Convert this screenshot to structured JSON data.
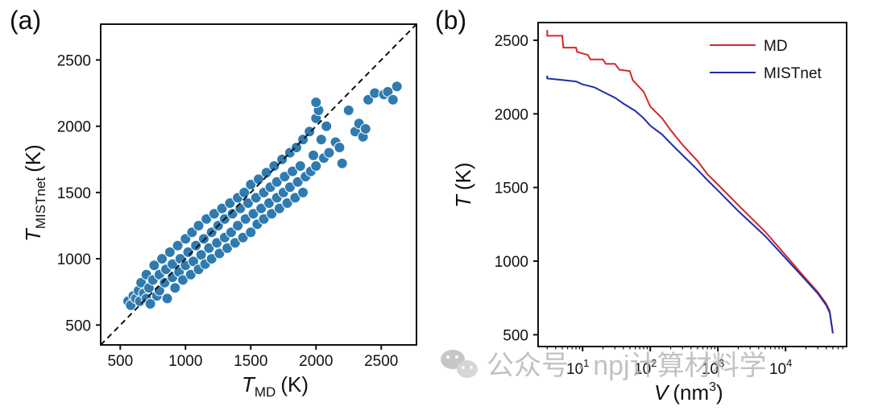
{
  "chart_data": [
    {
      "type": "scatter",
      "panel_label": "(a)",
      "xlabel": "T",
      "xlabel_sub": "MD",
      "xlabel_unit": "(K)",
      "ylabel": "T",
      "ylabel_sub": "MISTnet",
      "ylabel_unit": "(K)",
      "xlim": [
        350,
        2770
      ],
      "ylim": [
        350,
        2770
      ],
      "xticks": [
        500,
        1000,
        1500,
        2000,
        2500
      ],
      "yticks": [
        500,
        1000,
        1500,
        2000,
        2500
      ],
      "reference_line": "y = x (dashed)",
      "point_color": "#2f7bb0",
      "points": [
        [
          560,
          680
        ],
        [
          580,
          650
        ],
        [
          600,
          720
        ],
        [
          620,
          700
        ],
        [
          640,
          760
        ],
        [
          650,
          680
        ],
        [
          660,
          820
        ],
        [
          680,
          740
        ],
        [
          700,
          700
        ],
        [
          700,
          880
        ],
        [
          720,
          780
        ],
        [
          730,
          660
        ],
        [
          750,
          840
        ],
        [
          760,
          950
        ],
        [
          780,
          720
        ],
        [
          800,
          880
        ],
        [
          800,
          760
        ],
        [
          820,
          1000
        ],
        [
          840,
          820
        ],
        [
          850,
          920
        ],
        [
          860,
          700
        ],
        [
          880,
          1050
        ],
        [
          900,
          860
        ],
        [
          900,
          960
        ],
        [
          920,
          780
        ],
        [
          940,
          1100
        ],
        [
          950,
          900
        ],
        [
          960,
          1000
        ],
        [
          980,
          840
        ],
        [
          1000,
          1150
        ],
        [
          1000,
          950
        ],
        [
          1020,
          1050
        ],
        [
          1040,
          880
        ],
        [
          1050,
          1200
        ],
        [
          1060,
          980
        ],
        [
          1080,
          1100
        ],
        [
          1100,
          920
        ],
        [
          1100,
          1250
        ],
        [
          1120,
          1030
        ],
        [
          1140,
          1150
        ],
        [
          1150,
          960
        ],
        [
          1160,
          1300
        ],
        [
          1180,
          1080
        ],
        [
          1200,
          1200
        ],
        [
          1200,
          1000
        ],
        [
          1220,
          1340
        ],
        [
          1240,
          1120
        ],
        [
          1250,
          1250
        ],
        [
          1260,
          1040
        ],
        [
          1280,
          1380
        ],
        [
          1300,
          1160
        ],
        [
          1300,
          1300
        ],
        [
          1320,
          1080
        ],
        [
          1340,
          1420
        ],
        [
          1350,
          1200
        ],
        [
          1360,
          1340
        ],
        [
          1380,
          1120
        ],
        [
          1400,
          1460
        ],
        [
          1400,
          1250
        ],
        [
          1420,
          1380
        ],
        [
          1440,
          1160
        ],
        [
          1450,
          1500
        ],
        [
          1460,
          1300
        ],
        [
          1480,
          1420
        ],
        [
          1500,
          1200
        ],
        [
          1500,
          1560
        ],
        [
          1520,
          1340
        ],
        [
          1540,
          1460
        ],
        [
          1550,
          1260
        ],
        [
          1560,
          1600
        ],
        [
          1580,
          1380
        ],
        [
          1600,
          1500
        ],
        [
          1600,
          1300
        ],
        [
          1620,
          1650
        ],
        [
          1640,
          1420
        ],
        [
          1650,
          1540
        ],
        [
          1660,
          1340
        ],
        [
          1680,
          1700
        ],
        [
          1700,
          1460
        ],
        [
          1700,
          1580
        ],
        [
          1720,
          1380
        ],
        [
          1740,
          1750
        ],
        [
          1750,
          1500
        ],
        [
          1760,
          1620
        ],
        [
          1780,
          1420
        ],
        [
          1800,
          1800
        ],
        [
          1800,
          1540
        ],
        [
          1820,
          1660
        ],
        [
          1840,
          1460
        ],
        [
          1850,
          1840
        ],
        [
          1860,
          1580
        ],
        [
          1880,
          1700
        ],
        [
          1900,
          1500
        ],
        [
          1900,
          1900
        ],
        [
          1920,
          1620
        ],
        [
          1950,
          1960
        ],
        [
          1960,
          1660
        ],
        [
          1980,
          1780
        ],
        [
          2000,
          2060
        ],
        [
          2000,
          1700
        ],
        [
          2020,
          2120
        ],
        [
          2040,
          1900
        ],
        [
          2060,
          1760
        ],
        [
          2080,
          2000
        ],
        [
          2100,
          1800
        ],
        [
          2150,
          1880
        ],
        [
          2180,
          1840
        ],
        [
          2200,
          1720
        ],
        [
          2250,
          2120
        ],
        [
          2300,
          1960
        ],
        [
          2330,
          2020
        ],
        [
          2360,
          1920
        ],
        [
          2380,
          1980
        ],
        [
          2400,
          2200
        ],
        [
          2450,
          2250
        ],
        [
          2520,
          2240
        ],
        [
          2550,
          2260
        ],
        [
          2590,
          2200
        ],
        [
          2620,
          2300
        ],
        [
          2000,
          2180
        ]
      ]
    },
    {
      "type": "line",
      "panel_label": "(b)",
      "xlabel": "V",
      "xlabel_unit": "(nm",
      "xlabel_sup": "3",
      "xlabel_close": ")",
      "ylabel": "T",
      "ylabel_unit": "(K)",
      "xscale": "log",
      "xlim": [
        2.2,
        80000
      ],
      "ylim": [
        420,
        2620
      ],
      "xticks": [
        {
          "base": "10",
          "exp": "1",
          "value": 10
        },
        {
          "base": "10",
          "exp": "2",
          "value": 100
        },
        {
          "base": "10",
          "exp": "3",
          "value": 1000
        },
        {
          "base": "10",
          "exp": "4",
          "value": 10000
        }
      ],
      "yticks": [
        500,
        1000,
        1500,
        2000,
        2500
      ],
      "legend_position": "top-right",
      "series": [
        {
          "name": "MD",
          "color": "#d62728",
          "x": [
            3,
            3,
            3.5,
            5,
            5.2,
            8,
            8.3,
            12,
            13,
            20,
            22,
            30,
            35,
            50,
            55,
            80,
            100,
            150,
            200,
            300,
            500,
            700,
            1000,
            2000,
            5000,
            10000,
            20000,
            30000,
            40000,
            45000,
            50000
          ],
          "y": [
            2570,
            2530,
            2530,
            2530,
            2450,
            2450,
            2420,
            2400,
            2370,
            2370,
            2340,
            2340,
            2300,
            2290,
            2230,
            2150,
            2050,
            1970,
            1890,
            1790,
            1680,
            1590,
            1520,
            1380,
            1200,
            1040,
            880,
            790,
            710,
            660,
            510
          ]
        },
        {
          "name": "MISTnet",
          "color": "#1f2fa8",
          "x": [
            3,
            3,
            5,
            8,
            10,
            15,
            20,
            30,
            40,
            60,
            80,
            100,
            150,
            200,
            300,
            500,
            700,
            1000,
            2000,
            5000,
            10000,
            20000,
            30000,
            40000,
            45000,
            50000
          ],
          "y": [
            2260,
            2240,
            2230,
            2220,
            2200,
            2180,
            2150,
            2110,
            2070,
            2020,
            1970,
            1920,
            1860,
            1800,
            1720,
            1620,
            1550,
            1480,
            1340,
            1170,
            1020,
            870,
            780,
            700,
            650,
            510
          ]
        }
      ]
    }
  ],
  "watermark": {
    "text": "公众号 · npj计算材料学",
    "icon": "wechat-icon"
  }
}
